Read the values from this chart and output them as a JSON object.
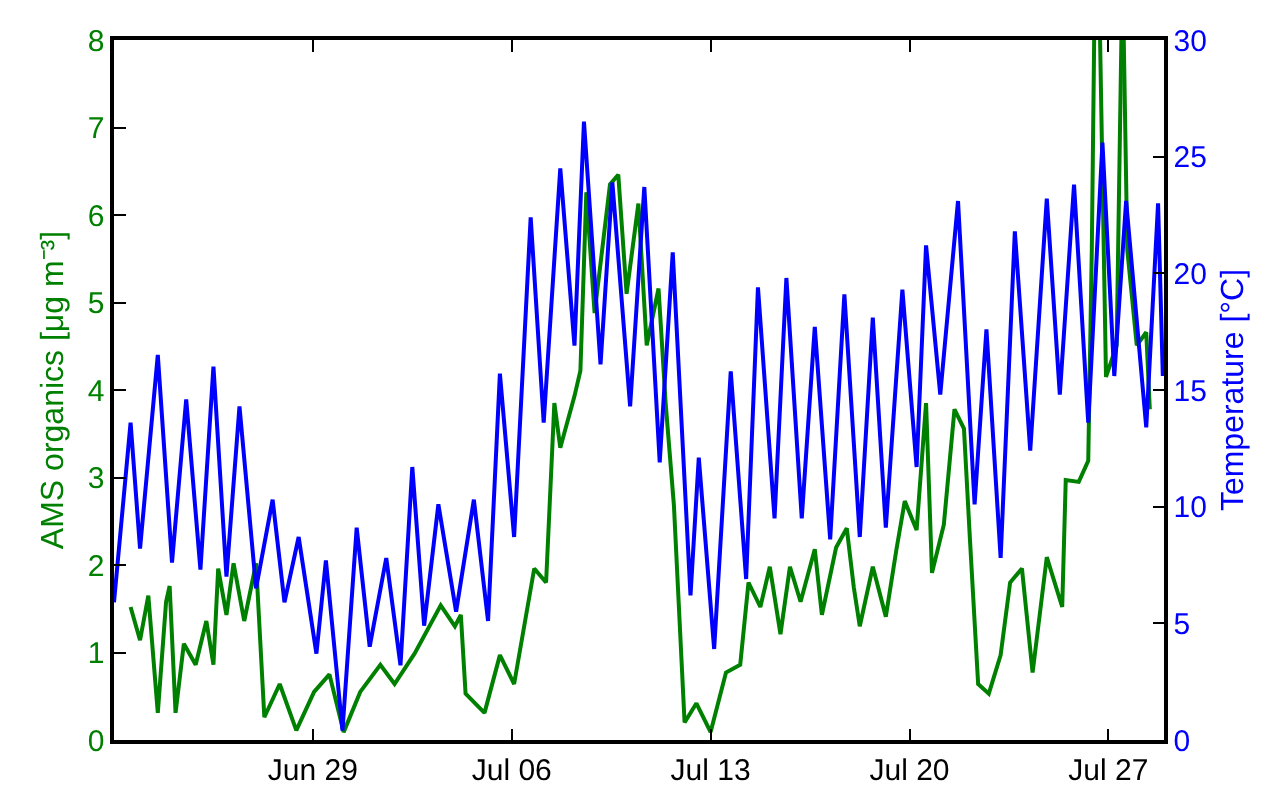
{
  "chart_data": {
    "type": "line",
    "ylabel": "AMS organics [μg m⁻³]",
    "y2label": "Temperature [°C]",
    "xlim": [
      "--06-22T00:00",
      "--07-28T23:00"
    ],
    "xticks": [
      {
        "value": "--06-29",
        "label": "Jun 29"
      },
      {
        "value": "--07-06",
        "label": "Jul 06"
      },
      {
        "value": "--07-13",
        "label": "Jul 13"
      },
      {
        "value": "--07-20",
        "label": "Jul 20"
      },
      {
        "value": "--07-27",
        "label": "Jul 27"
      }
    ],
    "ylim": [
      0,
      8
    ],
    "yticks": [
      0,
      1,
      2,
      3,
      4,
      5,
      6,
      7,
      8
    ],
    "y2lim": [
      0,
      30
    ],
    "y2ticks": [
      0,
      5,
      10,
      15,
      20,
      25,
      30
    ],
    "marker": "none",
    "line_style": "solid",
    "series": [
      {
        "color": "#008000",
        "x": [
          "--06-22T14:00",
          "--06-22T22:00",
          "--06-23T05:00",
          "--06-23T13:00",
          "--06-23T20:00",
          "--06-23T23:00",
          "--06-24T04:00",
          "--06-24T11:00",
          "--06-24T21:00",
          "--06-25T06:00",
          "--06-25T12:00",
          "--06-25T16:00",
          "--06-25T23:00",
          "--06-26T05:00",
          "--06-26T14:00",
          "--06-27T00:00",
          "--06-27T07:00",
          "--06-27T20:00",
          "--06-28T10:00",
          "--06-29T01:00",
          "--06-29T14:00",
          "--06-30T02:00",
          "--06-30T16:00",
          "--07-01T09:00",
          "--07-01T21:00",
          "--07-02T14:00",
          "--07-03T12:00",
          "--07-04T00:00",
          "--07-04T05:00",
          "--07-04T09:00",
          "--07-05T01:00",
          "--07-05T14:00",
          "--07-06T02:00",
          "--07-06T19:00",
          "--07-07T05:00",
          "--07-07T12:00",
          "--07-07T17:00",
          "--07-08T05:00",
          "--07-08T10:00",
          "--07-08T15:00",
          "--07-08T22:00",
          "--07-09T11:00",
          "--07-09T18:00",
          "--07-10T01:00",
          "--07-10T11:00",
          "--07-10T18:00",
          "--07-11T04:00",
          "--07-11T10:00",
          "--07-11T17:00",
          "--07-12T02:00",
          "--07-12T12:00",
          "--07-13T00:00",
          "--07-13T13:00",
          "--07-14T01:00",
          "--07-14T08:00",
          "--07-14T18:00",
          "--07-15T02:00",
          "--07-15T11:00",
          "--07-15T19:00",
          "--07-16T04:00",
          "--07-16T16:00",
          "--07-16T22:00",
          "--07-17T10:00",
          "--07-17T19:00",
          "--07-18T01:00",
          "--07-18T06:00",
          "--07-18T17:00",
          "--07-19T04:00",
          "--07-19T13:00",
          "--07-19T20:00",
          "--07-20T06:00",
          "--07-20T14:00",
          "--07-20T19:00",
          "--07-21T05:00",
          "--07-21T14:00",
          "--07-21T22:00",
          "--07-22T03:00",
          "--07-22T10:00",
          "--07-22T19:00",
          "--07-23T05:00",
          "--07-23T13:00",
          "--07-23T23:00",
          "--07-24T08:00",
          "--07-24T20:00",
          "--07-25T09:00",
          "--07-25T12:00",
          "--07-25T23:00",
          "--07-26T07:00",
          "--07-26T10:00",
          "--07-26T12:00",
          "--07-26T13:00",
          "--07-26T17:00",
          "--07-26T22:00",
          "--07-27T07:00",
          "--07-27T11:00",
          "--07-27T12:00",
          "--07-27T13:00",
          "--07-27T16:00",
          "--07-28T00:00",
          "--07-28T08:00",
          "--07-28T11:00"
        ],
        "values": [
          1.52,
          1.14,
          1.65,
          0.31,
          1.58,
          1.76,
          0.31,
          1.1,
          0.86,
          1.36,
          0.86,
          1.96,
          1.43,
          2.02,
          1.36,
          2.02,
          0.26,
          0.64,
          0.11,
          0.55,
          0.75,
          0.09,
          0.55,
          0.86,
          0.64,
          0.99,
          1.54,
          1.3,
          1.43,
          0.53,
          0.31,
          0.97,
          0.64,
          1.96,
          1.8,
          3.85,
          3.34,
          3.93,
          4.22,
          6.26,
          4.88,
          6.35,
          6.46,
          5.1,
          6.13,
          4.51,
          5.16,
          3.85,
          2.68,
          0.2,
          0.42,
          0.09,
          0.77,
          0.86,
          1.8,
          1.52,
          1.98,
          1.21,
          1.98,
          1.58,
          2.18,
          1.43,
          2.2,
          2.42,
          1.74,
          1.3,
          1.98,
          1.41,
          2.18,
          2.73,
          2.4,
          3.85,
          1.91,
          2.46,
          3.78,
          3.56,
          2.31,
          0.64,
          0.53,
          0.97,
          1.8,
          1.96,
          0.77,
          2.09,
          1.52,
          2.97,
          2.95,
          3.19,
          5.6,
          8,
          null,
          8,
          4.15,
          4.51,
          8,
          null,
          8,
          5.6,
          4.51,
          4.66,
          3.78
        ]
      },
      {
        "color": "#0000ff",
        "axis": "y2",
        "x": [
          "--06-22T00:00",
          "--06-22T14:00",
          "--06-22T22:00",
          "--06-23T13:00",
          "--06-24T01:00",
          "--06-24T13:00",
          "--06-25T01:00",
          "--06-25T12:00",
          "--06-25T23:00",
          "--06-26T10:00",
          "--06-27T00:00",
          "--06-27T14:00",
          "--06-28T00:00",
          "--06-28T12:00",
          "--06-29T03:00",
          "--06-29T11:00",
          "--06-30T01:00",
          "--06-30T13:00",
          "--07-01T00:00",
          "--07-01T14:00",
          "--07-02T02:00",
          "--07-02T12:00",
          "--07-02T22:00",
          "--07-03T10:00",
          "--07-04T01:00",
          "--07-04T16:00",
          "--07-05T04:00",
          "--07-05T14:00",
          "--07-06T02:00",
          "--07-06T16:00",
          "--07-07T03:00",
          "--07-07T17:00",
          "--07-08T05:00",
          "--07-08T13:00",
          "--07-09T03:00",
          "--07-09T13:00",
          "--07-10T04:00",
          "--07-10T16:00",
          "--07-11T05:00",
          "--07-11T16:00",
          "--07-12T07:00",
          "--07-12T14:00",
          "--07-13T03:00",
          "--07-13T17:00",
          "--07-14T06:00",
          "--07-14T16:00",
          "--07-15T06:00",
          "--07-15T16:00",
          "--07-16T05:00",
          "--07-16T16:00",
          "--07-17T05:00",
          "--07-17T17:00",
          "--07-18T06:00",
          "--07-18T17:00",
          "--07-19T04:00",
          "--07-19T18:00",
          "--07-20T06:00",
          "--07-20T14:00",
          "--07-21T02:00",
          "--07-21T17:00",
          "--07-22T07:00",
          "--07-22T17:00",
          "--07-23T05:00",
          "--07-23T17:00",
          "--07-24T06:00",
          "--07-24T20:00",
          "--07-25T07:00",
          "--07-25T19:00",
          "--07-26T07:00",
          "--07-26T19:00",
          "--07-27T05:00",
          "--07-27T15:00",
          "--07-28T08:00",
          "--07-28T18:00",
          "--07-28T22:00"
        ],
        "values": [
          5.9,
          13.6,
          8.2,
          16.5,
          7.6,
          14.6,
          7.3,
          16.0,
          7.0,
          14.3,
          6.5,
          10.3,
          5.9,
          8.7,
          3.7,
          7.7,
          0.4,
          9.1,
          4.0,
          7.8,
          3.2,
          11.7,
          4.9,
          10.1,
          5.5,
          10.3,
          5.1,
          15.7,
          8.7,
          22.4,
          13.6,
          24.5,
          16.9,
          26.5,
          16.1,
          23.9,
          14.3,
          23.7,
          11.9,
          20.9,
          6.2,
          12.1,
          3.9,
          15.8,
          6.9,
          19.4,
          9.5,
          19.8,
          9.5,
          17.7,
          8.6,
          19.1,
          8.7,
          18.1,
          9.1,
          19.3,
          11.7,
          21.2,
          14.8,
          23.1,
          10.1,
          17.6,
          7.8,
          21.8,
          12.4,
          23.2,
          14.8,
          23.8,
          13.6,
          25.6,
          15.6,
          23.1,
          13.4,
          23.0,
          15.6
        ]
      }
    ]
  }
}
